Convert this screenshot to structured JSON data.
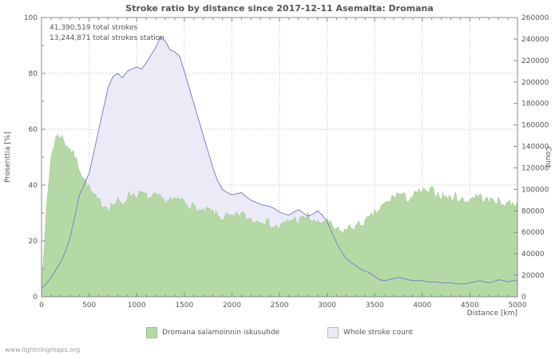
{
  "chart_data": {
    "type": "area",
    "title": "Stroke ratio by distance since 2017-12-11 Asemalta: Dromana",
    "xlabel": "Distance   [km]",
    "ylabel_left": "Prosenttia   [%]",
    "ylabel_right": "Count",
    "x_range": [
      0,
      5000
    ],
    "y_left_range": [
      0,
      100
    ],
    "y_right_range": [
      0,
      260000
    ],
    "x_ticks": [
      0,
      500,
      1000,
      1500,
      2000,
      2500,
      3000,
      3500,
      4000,
      4500,
      5000
    ],
    "x_minor_step": 100,
    "y_left_ticks": [
      0,
      20,
      40,
      60,
      80,
      100
    ],
    "y_left_minor_step": 10,
    "y_right_ticks": [
      0,
      20000,
      40000,
      60000,
      80000,
      100000,
      120000,
      140000,
      160000,
      180000,
      200000,
      220000,
      240000,
      260000
    ],
    "grid": true,
    "legend_position": "bottom",
    "x_step_km": 50,
    "series": [
      {
        "name": "Dromana salamoinnin iskusuhde",
        "axis": "left",
        "unit": "%",
        "values": [
          5,
          30,
          50,
          57,
          58,
          55,
          53,
          50,
          46,
          42,
          39,
          36,
          34,
          33,
          32,
          33,
          34,
          33,
          36,
          37,
          36,
          37,
          36,
          35,
          36,
          35,
          34,
          35,
          34,
          35,
          34,
          33,
          32,
          31,
          30,
          31,
          30,
          29,
          28,
          29,
          28,
          29,
          30,
          28,
          28,
          27,
          28,
          27,
          26,
          25,
          25,
          26,
          27,
          28,
          27,
          28,
          29,
          27,
          26,
          27,
          27,
          25,
          24,
          23,
          24,
          25,
          25,
          26,
          27,
          28,
          30,
          31,
          33,
          34,
          36,
          37,
          36,
          35,
          36,
          37,
          38,
          37,
          38,
          37,
          36,
          36,
          35,
          36,
          35,
          34,
          35,
          36,
          36,
          35,
          34,
          35,
          34,
          33,
          34,
          33,
          34
        ]
      },
      {
        "name": "Whole stroke count",
        "axis": "right",
        "unit": "strokes",
        "values": [
          8000,
          12000,
          18000,
          25000,
          32000,
          42000,
          55000,
          75000,
          95000,
          105000,
          115000,
          135000,
          155000,
          175000,
          195000,
          205000,
          208000,
          204000,
          210000,
          212000,
          214000,
          212000,
          218000,
          225000,
          232000,
          242000,
          238000,
          230000,
          228000,
          224000,
          210000,
          195000,
          180000,
          165000,
          150000,
          135000,
          120000,
          108000,
          100000,
          97000,
          95000,
          96000,
          97000,
          93000,
          90000,
          88000,
          86000,
          85000,
          84000,
          82000,
          79000,
          77000,
          76000,
          79000,
          81000,
          78000,
          75000,
          77000,
          80000,
          76000,
          70000,
          60000,
          50000,
          42000,
          36000,
          32000,
          29000,
          26000,
          24000,
          22000,
          19000,
          16000,
          15000,
          16000,
          17000,
          18000,
          17000,
          16000,
          15000,
          15000,
          15000,
          14000,
          14000,
          14000,
          13000,
          13000,
          13000,
          12000,
          12000,
          12000,
          13000,
          14000,
          15000,
          14000,
          13000,
          14000,
          16000,
          15000,
          14000,
          15000,
          15000
        ]
      }
    ],
    "legend": [
      {
        "label": "Dromana salamoinnin iskusuhde",
        "swatch": "ratio"
      },
      {
        "label": "Whole stroke count",
        "swatch": "count"
      }
    ],
    "colors": {
      "ratio_fill": "#b5d9a5",
      "ratio_edge": "#9cc98c",
      "count_fill": "#ebebf7",
      "count_line": "#8080cb",
      "grid": "#d6d6d6",
      "axis": "#888888",
      "text": "#555555"
    }
  },
  "annotations": {
    "line1": "41,390,519 total strokes",
    "line2": "13,244,871 total strokes station"
  },
  "footer": {
    "watermark": "www.lightningmaps.org"
  }
}
